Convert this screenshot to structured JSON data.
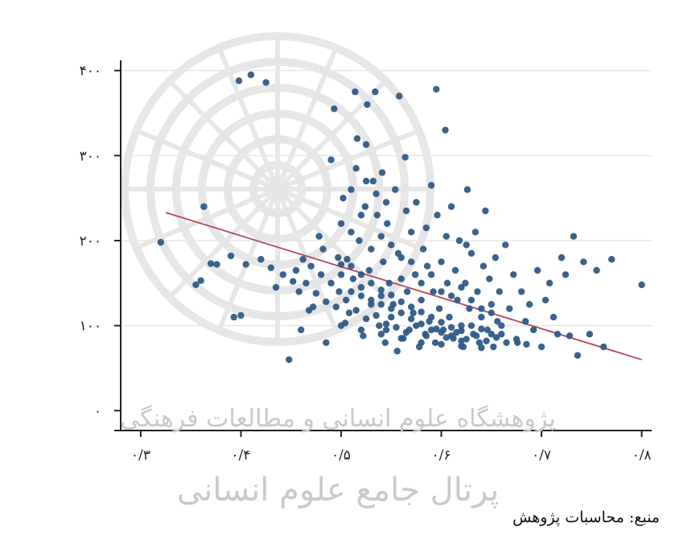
{
  "colors": {
    "point": "#2f5b86",
    "fit_line": "#b5475a",
    "axis": "#222222",
    "grid": "#e6e6e6",
    "watermark": "#cfcfcf"
  },
  "source_note": "منبع: محاسبات پژوهش",
  "watermark": {
    "line1": "پژوهشگاه علوم انسانی و مطالعات فرهنگی",
    "line2": "پرتال جامع علوم انسانی"
  },
  "chart_data": {
    "type": "scatter",
    "title": "",
    "xlabel": "",
    "ylabel": "",
    "xlim": [
      0.28,
      0.81
    ],
    "ylim": [
      -12,
      412
    ],
    "x_ticks": [
      {
        "value": 0.3,
        "label": "۰/۳"
      },
      {
        "value": 0.4,
        "label": "۰/۴"
      },
      {
        "value": 0.5,
        "label": "۰/۵"
      },
      {
        "value": 0.6,
        "label": "۰/۶"
      },
      {
        "value": 0.7,
        "label": "۰/۷"
      },
      {
        "value": 0.8,
        "label": "۰/۸"
      }
    ],
    "y_ticks": [
      {
        "value": 0,
        "label": "۰"
      },
      {
        "value": 100,
        "label": "۱۰۰"
      },
      {
        "value": 200,
        "label": "۲۰۰"
      },
      {
        "value": 300,
        "label": "۳۰۰"
      },
      {
        "value": 400,
        "label": "۴۰۰"
      }
    ],
    "grid": true,
    "legend": "none",
    "fit_line": {
      "x": [
        0.325,
        0.8
      ],
      "y": [
        233,
        60
      ]
    },
    "points": [
      [
        0.32,
        198
      ],
      [
        0.355,
        148
      ],
      [
        0.36,
        153
      ],
      [
        0.363,
        240
      ],
      [
        0.37,
        173
      ],
      [
        0.376,
        172
      ],
      [
        0.39,
        182
      ],
      [
        0.393,
        110
      ],
      [
        0.398,
        388
      ],
      [
        0.41,
        395
      ],
      [
        0.425,
        386
      ],
      [
        0.4,
        112
      ],
      [
        0.405,
        172
      ],
      [
        0.42,
        178
      ],
      [
        0.43,
        168
      ],
      [
        0.435,
        145
      ],
      [
        0.442,
        160
      ],
      [
        0.448,
        60
      ],
      [
        0.452,
        152
      ],
      [
        0.458,
        140
      ],
      [
        0.46,
        95
      ],
      [
        0.462,
        178
      ],
      [
        0.468,
        118
      ],
      [
        0.472,
        122
      ],
      [
        0.478,
        205
      ],
      [
        0.482,
        190
      ],
      [
        0.485,
        80
      ],
      [
        0.49,
        295
      ],
      [
        0.493,
        355
      ],
      [
        0.497,
        180
      ],
      [
        0.498,
        140
      ],
      [
        0.5,
        172
      ],
      [
        0.502,
        250
      ],
      [
        0.504,
        103
      ],
      [
        0.506,
        178
      ],
      [
        0.508,
        115
      ],
      [
        0.51,
        210
      ],
      [
        0.512,
        155
      ],
      [
        0.514,
        375
      ],
      [
        0.516,
        320
      ],
      [
        0.518,
        200
      ],
      [
        0.52,
        145
      ],
      [
        0.522,
        88
      ],
      [
        0.524,
        240
      ],
      [
        0.525,
        313
      ],
      [
        0.526,
        360
      ],
      [
        0.528,
        165
      ],
      [
        0.53,
        125
      ],
      [
        0.532,
        270
      ],
      [
        0.534,
        375
      ],
      [
        0.536,
        230
      ],
      [
        0.538,
        100
      ],
      [
        0.54,
        135
      ],
      [
        0.541,
        280
      ],
      [
        0.542,
        175
      ],
      [
        0.544,
        80
      ],
      [
        0.545,
        95
      ],
      [
        0.546,
        220
      ],
      [
        0.548,
        150
      ],
      [
        0.55,
        110
      ],
      [
        0.552,
        125
      ],
      [
        0.554,
        260
      ],
      [
        0.556,
        70
      ],
      [
        0.557,
        185
      ],
      [
        0.558,
        370
      ],
      [
        0.56,
        155
      ],
      [
        0.562,
        85
      ],
      [
        0.564,
        298
      ],
      [
        0.566,
        140
      ],
      [
        0.568,
        95
      ],
      [
        0.57,
        210
      ],
      [
        0.572,
        115
      ],
      [
        0.574,
        160
      ],
      [
        0.575,
        245
      ],
      [
        0.578,
        75
      ],
      [
        0.58,
        130
      ],
      [
        0.582,
        190
      ],
      [
        0.584,
        90
      ],
      [
        0.586,
        170
      ],
      [
        0.588,
        105
      ],
      [
        0.59,
        265
      ],
      [
        0.592,
        140
      ],
      [
        0.594,
        80
      ],
      [
        0.595,
        378
      ],
      [
        0.596,
        230
      ],
      [
        0.598,
        120
      ],
      [
        0.6,
        175
      ],
      [
        0.602,
        95
      ],
      [
        0.604,
        330
      ],
      [
        0.606,
        150
      ],
      [
        0.608,
        110
      ],
      [
        0.61,
        240
      ],
      [
        0.612,
        85
      ],
      [
        0.614,
        165
      ],
      [
        0.616,
        130
      ],
      [
        0.618,
        200
      ],
      [
        0.62,
        100
      ],
      [
        0.622,
        75
      ],
      [
        0.624,
        150
      ],
      [
        0.626,
        260
      ],
      [
        0.628,
        120
      ],
      [
        0.63,
        185
      ],
      [
        0.632,
        90
      ],
      [
        0.634,
        210
      ],
      [
        0.636,
        140
      ],
      [
        0.638,
        80
      ],
      [
        0.64,
        110
      ],
      [
        0.642,
        170
      ],
      [
        0.644,
        235
      ],
      [
        0.646,
        95
      ],
      [
        0.648,
        155
      ],
      [
        0.65,
        125
      ],
      [
        0.652,
        75
      ],
      [
        0.654,
        180
      ],
      [
        0.656,
        105
      ],
      [
        0.658,
        140
      ],
      [
        0.66,
        90
      ],
      [
        0.664,
        195
      ],
      [
        0.668,
        120
      ],
      [
        0.672,
        160
      ],
      [
        0.676,
        80
      ],
      [
        0.68,
        140
      ],
      [
        0.684,
        105
      ],
      [
        0.688,
        125
      ],
      [
        0.692,
        95
      ],
      [
        0.696,
        165
      ],
      [
        0.7,
        75
      ],
      [
        0.704,
        130
      ],
      [
        0.708,
        150
      ],
      [
        0.712,
        110
      ],
      [
        0.716,
        90
      ],
      [
        0.72,
        180
      ],
      [
        0.724,
        160
      ],
      [
        0.728,
        88
      ],
      [
        0.732,
        205
      ],
      [
        0.736,
        65
      ],
      [
        0.742,
        175
      ],
      [
        0.748,
        90
      ],
      [
        0.755,
        165
      ],
      [
        0.762,
        75
      ],
      [
        0.77,
        178
      ],
      [
        0.8,
        148
      ],
      [
        0.455,
        165
      ],
      [
        0.465,
        150
      ],
      [
        0.475,
        138
      ],
      [
        0.485,
        128
      ],
      [
        0.495,
        122
      ],
      [
        0.505,
        130
      ],
      [
        0.515,
        118
      ],
      [
        0.525,
        108
      ],
      [
        0.535,
        112
      ],
      [
        0.545,
        102
      ],
      [
        0.555,
        98
      ],
      [
        0.565,
        92
      ],
      [
        0.575,
        100
      ],
      [
        0.585,
        88
      ],
      [
        0.595,
        96
      ],
      [
        0.605,
        86
      ],
      [
        0.615,
        92
      ],
      [
        0.625,
        84
      ],
      [
        0.635,
        88
      ],
      [
        0.645,
        82
      ],
      [
        0.655,
        86
      ],
      [
        0.665,
        80
      ],
      [
        0.675,
        84
      ],
      [
        0.685,
        78
      ],
      [
        0.51,
        170
      ],
      [
        0.52,
        160
      ],
      [
        0.53,
        150
      ],
      [
        0.54,
        142
      ],
      [
        0.55,
        136
      ],
      [
        0.56,
        128
      ],
      [
        0.57,
        122
      ],
      [
        0.58,
        116
      ],
      [
        0.59,
        110
      ],
      [
        0.6,
        104
      ],
      [
        0.61,
        98
      ],
      [
        0.62,
        94
      ],
      [
        0.63,
        100
      ],
      [
        0.64,
        96
      ],
      [
        0.65,
        90
      ],
      [
        0.66,
        100
      ],
      [
        0.5,
        220
      ],
      [
        0.51,
        260
      ],
      [
        0.52,
        230
      ],
      [
        0.53,
        190
      ],
      [
        0.54,
        205
      ],
      [
        0.55,
        195
      ],
      [
        0.56,
        180
      ],
      [
        0.57,
        175
      ],
      [
        0.58,
        150
      ],
      [
        0.59,
        160
      ],
      [
        0.6,
        140
      ],
      [
        0.61,
        135
      ],
      [
        0.62,
        145
      ],
      [
        0.63,
        130
      ],
      [
        0.64,
        120
      ],
      [
        0.65,
        115
      ],
      [
        0.47,
        170
      ],
      [
        0.48,
        160
      ],
      [
        0.49,
        150
      ],
      [
        0.5,
        160
      ],
      [
        0.51,
        140
      ],
      [
        0.52,
        135
      ],
      [
        0.53,
        130
      ],
      [
        0.54,
        125
      ],
      [
        0.55,
        120
      ],
      [
        0.56,
        115
      ],
      [
        0.57,
        108
      ],
      [
        0.58,
        102
      ],
      [
        0.59,
        95
      ],
      [
        0.6,
        92
      ],
      [
        0.61,
        88
      ],
      [
        0.62,
        82
      ],
      [
        0.5,
        100
      ],
      [
        0.52,
        95
      ],
      [
        0.54,
        90
      ],
      [
        0.56,
        85
      ],
      [
        0.58,
        80
      ],
      [
        0.6,
        78
      ],
      [
        0.62,
        76
      ],
      [
        0.64,
        74
      ],
      [
        0.515,
        285
      ],
      [
        0.525,
        270
      ],
      [
        0.535,
        255
      ],
      [
        0.545,
        245
      ],
      [
        0.565,
        235
      ],
      [
        0.585,
        215
      ],
      [
        0.605,
        205
      ],
      [
        0.625,
        195
      ]
    ]
  }
}
